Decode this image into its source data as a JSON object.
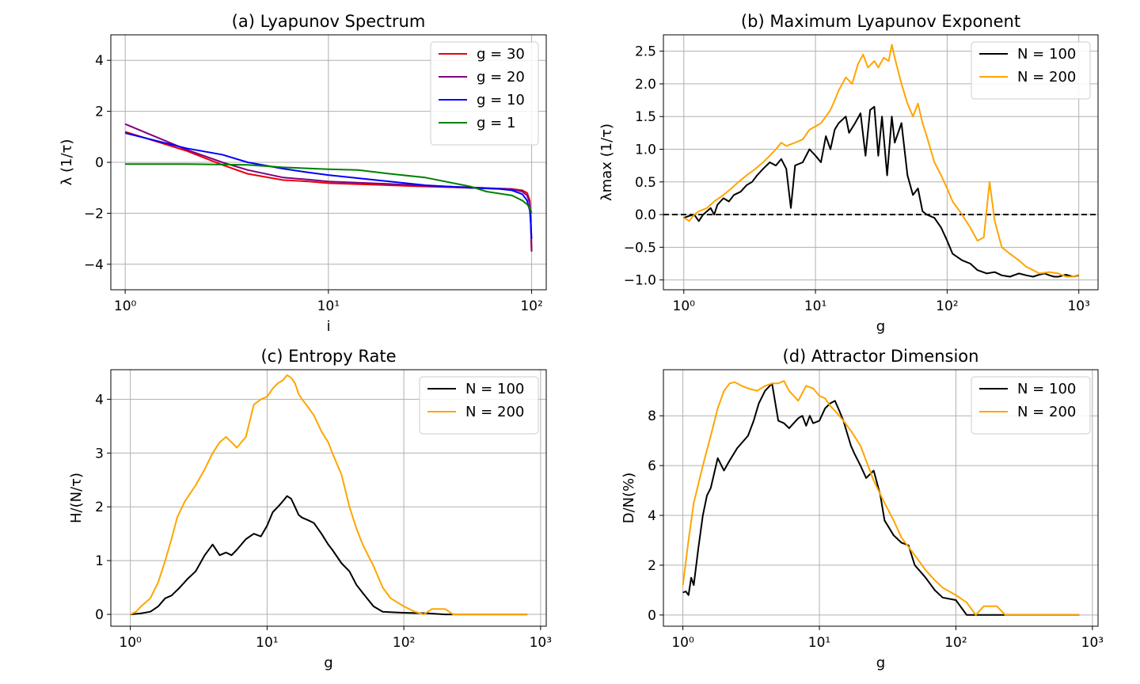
{
  "chart_data": [
    {
      "id": "a",
      "type": "line",
      "title": "(a) Lyapunov Spectrum",
      "xlabel": "i",
      "ylabel": "λ (1/τ)",
      "xscale": "log",
      "xlim": [
        0.85,
        118
      ],
      "ylim": [
        -5,
        5
      ],
      "xticks": [
        {
          "value": 1,
          "label": "10⁰"
        },
        {
          "value": 10,
          "label": "10¹"
        },
        {
          "value": 100,
          "label": "10²"
        }
      ],
      "yticks": [
        {
          "value": -4,
          "label": "−4"
        },
        {
          "value": -2,
          "label": "−2"
        },
        {
          "value": 0,
          "label": "0"
        },
        {
          "value": 2,
          "label": "2"
        },
        {
          "value": 4,
          "label": "4"
        }
      ],
      "grid": true,
      "legend": "top-right",
      "series": [
        {
          "name": "g = 30",
          "color": "#e8000b",
          "x": [
            1,
            2,
            3,
            4,
            6,
            8,
            10,
            20,
            30,
            50,
            80,
            90,
            95,
            98,
            99,
            100
          ],
          "y": [
            1.2,
            0.45,
            -0.1,
            -0.45,
            -0.7,
            -0.75,
            -0.82,
            -0.9,
            -0.95,
            -1.0,
            -1.05,
            -1.1,
            -1.2,
            -1.5,
            -2.2,
            -3.5
          ]
        },
        {
          "name": "g = 20",
          "color": "#800080",
          "x": [
            1,
            2,
            3,
            4,
            6,
            8,
            10,
            20,
            30,
            50,
            80,
            90,
            95,
            98,
            99,
            100
          ],
          "y": [
            1.5,
            0.5,
            0.0,
            -0.3,
            -0.6,
            -0.68,
            -0.75,
            -0.85,
            -0.92,
            -0.98,
            -1.05,
            -1.15,
            -1.3,
            -1.6,
            -2.3,
            -3.5
          ]
        },
        {
          "name": "g = 10",
          "color": "#0000ff",
          "x": [
            1,
            2,
            3,
            4,
            6,
            8,
            10,
            20,
            30,
            50,
            70,
            80,
            90,
            95,
            98,
            99,
            100
          ],
          "y": [
            1.15,
            0.55,
            0.3,
            0.0,
            -0.25,
            -0.4,
            -0.5,
            -0.75,
            -0.9,
            -1.0,
            -1.05,
            -1.1,
            -1.25,
            -1.5,
            -1.9,
            -2.4,
            -3.0
          ]
        },
        {
          "name": "g = 1",
          "color": "#008000",
          "x": [
            1,
            2,
            4,
            6,
            10,
            14,
            20,
            30,
            50,
            60,
            80,
            90,
            95,
            98,
            100
          ],
          "y": [
            -0.07,
            -0.07,
            -0.1,
            -0.2,
            -0.27,
            -0.3,
            -0.45,
            -0.6,
            -0.95,
            -1.15,
            -1.3,
            -1.5,
            -1.65,
            -1.8,
            -2.0
          ]
        }
      ]
    },
    {
      "id": "b",
      "type": "line",
      "title": "(b) Maximum Lyapunov Exponent",
      "xlabel": "g",
      "ylabel": "λmax (1/τ)",
      "xscale": "log",
      "xlim": [
        0.7,
        1400
      ],
      "ylim": [
        -1.15,
        2.75
      ],
      "xticks": [
        {
          "value": 1,
          "label": "10⁰"
        },
        {
          "value": 10,
          "label": "10¹"
        },
        {
          "value": 100,
          "label": "10²"
        },
        {
          "value": 1000,
          "label": "10³"
        }
      ],
      "yticks": [
        {
          "value": -1.0,
          "label": "−1.0"
        },
        {
          "value": -0.5,
          "label": "−0.5"
        },
        {
          "value": 0.0,
          "label": "0.0"
        },
        {
          "value": 0.5,
          "label": "0.5"
        },
        {
          "value": 1.0,
          "label": "1.0"
        },
        {
          "value": 1.5,
          "label": "1.5"
        },
        {
          "value": 2.0,
          "label": "2.0"
        },
        {
          "value": 2.5,
          "label": "2.5"
        }
      ],
      "grid": true,
      "legend": "top-right",
      "reference_line": {
        "y": 0,
        "style": "dashed",
        "color": "#000000"
      },
      "series": [
        {
          "name": "N = 100",
          "color": "#000000",
          "x": [
            1,
            1.1,
            1.2,
            1.3,
            1.4,
            1.5,
            1.6,
            1.7,
            1.8,
            2,
            2.2,
            2.4,
            2.7,
            3,
            3.3,
            3.6,
            4,
            4.5,
            5,
            5.5,
            6,
            6.5,
            7,
            8,
            9,
            10,
            11,
            12,
            13,
            14,
            15,
            17,
            18,
            20,
            22,
            24,
            26,
            28,
            30,
            32,
            35,
            38,
            40,
            45,
            50,
            55,
            60,
            65,
            70,
            80,
            90,
            100,
            110,
            130,
            150,
            170,
            200,
            230,
            260,
            300,
            350,
            400,
            450,
            500,
            550,
            600,
            650,
            700,
            800,
            900,
            1000
          ],
          "y": [
            -0.05,
            -0.02,
            0.0,
            -0.1,
            0.0,
            0.05,
            0.1,
            0.0,
            0.15,
            0.25,
            0.2,
            0.3,
            0.35,
            0.45,
            0.5,
            0.6,
            0.7,
            0.8,
            0.75,
            0.85,
            0.7,
            0.1,
            0.75,
            0.8,
            1.0,
            0.9,
            0.8,
            1.2,
            1.0,
            1.3,
            1.4,
            1.5,
            1.25,
            1.4,
            1.55,
            0.9,
            1.6,
            1.65,
            0.9,
            1.5,
            0.6,
            1.5,
            1.1,
            1.4,
            0.6,
            0.3,
            0.4,
            0.05,
            0.0,
            -0.05,
            -0.2,
            -0.4,
            -0.6,
            -0.7,
            -0.75,
            -0.85,
            -0.9,
            -0.88,
            -0.93,
            -0.95,
            -0.9,
            -0.93,
            -0.95,
            -0.92,
            -0.9,
            -0.93,
            -0.95,
            -0.95,
            -0.92,
            -0.95,
            -0.93
          ]
        },
        {
          "name": "N = 200",
          "color": "#ffa500",
          "x": [
            1,
            1.1,
            1.2,
            1.3,
            1.5,
            1.7,
            2,
            2.3,
            2.6,
            3,
            3.5,
            4,
            4.5,
            5,
            5.5,
            6,
            7,
            8,
            9,
            10,
            11,
            12,
            13,
            14,
            15,
            17,
            19,
            21,
            23,
            25,
            28,
            30,
            33,
            36,
            38,
            40,
            45,
            50,
            55,
            60,
            65,
            70,
            80,
            90,
            100,
            110,
            130,
            150,
            170,
            190,
            210,
            230,
            260,
            300,
            350,
            400,
            450,
            500,
            600,
            700,
            800,
            900,
            1000
          ],
          "y": [
            -0.05,
            -0.1,
            0.0,
            0.05,
            0.1,
            0.2,
            0.3,
            0.4,
            0.5,
            0.6,
            0.7,
            0.8,
            0.9,
            1.0,
            1.1,
            1.05,
            1.1,
            1.15,
            1.3,
            1.35,
            1.4,
            1.5,
            1.6,
            1.75,
            1.9,
            2.1,
            2.0,
            2.3,
            2.45,
            2.25,
            2.35,
            2.25,
            2.4,
            2.35,
            2.6,
            2.4,
            2.0,
            1.7,
            1.5,
            1.7,
            1.4,
            1.2,
            0.8,
            0.6,
            0.4,
            0.2,
            0.0,
            -0.2,
            -0.4,
            -0.35,
            0.5,
            -0.1,
            -0.5,
            -0.6,
            -0.7,
            -0.8,
            -0.85,
            -0.9,
            -0.88,
            -0.9,
            -0.95,
            -0.95,
            -0.92
          ]
        }
      ]
    },
    {
      "id": "c",
      "type": "line",
      "title": "(c) Entropy Rate",
      "xlabel": "g",
      "ylabel": "H/(N/τ)",
      "xscale": "log",
      "xlim": [
        0.72,
        1100
      ],
      "ylim": [
        -0.22,
        4.55
      ],
      "xticks": [
        {
          "value": 1,
          "label": "10⁰"
        },
        {
          "value": 10,
          "label": "10¹"
        },
        {
          "value": 100,
          "label": "10²"
        },
        {
          "value": 1000,
          "label": "10³"
        }
      ],
      "yticks": [
        {
          "value": 0,
          "label": "0"
        },
        {
          "value": 1,
          "label": "1"
        },
        {
          "value": 2,
          "label": "2"
        },
        {
          "value": 3,
          "label": "3"
        },
        {
          "value": 4,
          "label": "4"
        }
      ],
      "grid": true,
      "legend": "top-right",
      "series": [
        {
          "name": "N = 100",
          "color": "#000000",
          "x": [
            1,
            1.2,
            1.4,
            1.6,
            1.8,
            2,
            2.3,
            2.6,
            3,
            3.5,
            4,
            4.5,
            5,
            5.5,
            6,
            7,
            8,
            9,
            10,
            11,
            12,
            13,
            14,
            15,
            16,
            17,
            18,
            20,
            22,
            25,
            28,
            30,
            35,
            40,
            45,
            50,
            60,
            70,
            80,
            100,
            150,
            200,
            300,
            500,
            800
          ],
          "y": [
            0.0,
            0.02,
            0.05,
            0.15,
            0.3,
            0.35,
            0.5,
            0.65,
            0.8,
            1.1,
            1.3,
            1.1,
            1.15,
            1.1,
            1.2,
            1.4,
            1.5,
            1.45,
            1.65,
            1.9,
            2.0,
            2.1,
            2.2,
            2.15,
            2.0,
            1.85,
            1.8,
            1.75,
            1.7,
            1.5,
            1.3,
            1.2,
            0.95,
            0.8,
            0.55,
            0.4,
            0.15,
            0.05,
            0.04,
            0.03,
            0.02,
            0.0,
            0.0,
            0.0,
            0.0
          ]
        },
        {
          "name": "N = 200",
          "color": "#ffa500",
          "x": [
            1,
            1.1,
            1.2,
            1.4,
            1.6,
            1.8,
            2,
            2.2,
            2.5,
            3,
            3.5,
            4,
            4.5,
            5,
            5.5,
            6,
            7,
            8,
            9,
            10,
            11,
            12,
            13,
            14,
            15,
            16,
            17,
            18,
            20,
            22,
            25,
            28,
            30,
            35,
            40,
            45,
            50,
            60,
            70,
            80,
            100,
            120,
            140,
            160,
            200,
            230,
            260,
            300,
            500,
            800
          ],
          "y": [
            0.0,
            0.05,
            0.15,
            0.3,
            0.6,
            1.0,
            1.4,
            1.8,
            2.1,
            2.4,
            2.7,
            3.0,
            3.2,
            3.3,
            3.2,
            3.1,
            3.3,
            3.9,
            4.0,
            4.05,
            4.2,
            4.3,
            4.35,
            4.45,
            4.4,
            4.3,
            4.1,
            4.0,
            3.85,
            3.7,
            3.4,
            3.2,
            3.0,
            2.6,
            2.0,
            1.6,
            1.3,
            0.9,
            0.5,
            0.3,
            0.15,
            0.05,
            0.0,
            0.1,
            0.1,
            0.0,
            0.0,
            0.0,
            0.0,
            0.0
          ]
        }
      ]
    },
    {
      "id": "d",
      "type": "line",
      "title": "(d) Attractor Dimension",
      "xlabel": "g",
      "ylabel": "D/N(%)",
      "xscale": "log",
      "xlim": [
        0.72,
        1100
      ],
      "ylim": [
        -0.45,
        9.85
      ],
      "xticks": [
        {
          "value": 1,
          "label": "10⁰"
        },
        {
          "value": 10,
          "label": "10¹"
        },
        {
          "value": 100,
          "label": "10²"
        },
        {
          "value": 1000,
          "label": "10³"
        }
      ],
      "yticks": [
        {
          "value": 0,
          "label": "0"
        },
        {
          "value": 2,
          "label": "2"
        },
        {
          "value": 4,
          "label": "4"
        },
        {
          "value": 6,
          "label": "6"
        },
        {
          "value": 8,
          "label": "8"
        }
      ],
      "grid": true,
      "legend": "top-right",
      "series": [
        {
          "name": "N = 100",
          "color": "#000000",
          "x": [
            1,
            1.05,
            1.1,
            1.15,
            1.2,
            1.3,
            1.4,
            1.5,
            1.6,
            1.8,
            2,
            2.2,
            2.5,
            3,
            3.3,
            3.6,
            4,
            4.5,
            5,
            5.5,
            6,
            7,
            7.5,
            8,
            8.5,
            9,
            10,
            11,
            12,
            13,
            14,
            15,
            17,
            18,
            20,
            22,
            25,
            28,
            30,
            35,
            40,
            45,
            50,
            60,
            70,
            80,
            100,
            120,
            150,
            200,
            300,
            500,
            800
          ],
          "y": [
            0.9,
            0.95,
            0.8,
            1.5,
            1.2,
            2.7,
            4.0,
            4.8,
            5.1,
            6.3,
            5.8,
            6.2,
            6.7,
            7.2,
            7.8,
            8.5,
            9.0,
            9.3,
            7.8,
            7.7,
            7.5,
            7.9,
            8.0,
            7.6,
            8.0,
            7.7,
            7.8,
            8.3,
            8.5,
            8.6,
            8.2,
            7.8,
            6.8,
            6.5,
            6.0,
            5.5,
            5.8,
            4.8,
            3.8,
            3.2,
            2.9,
            2.8,
            2.0,
            1.5,
            1.0,
            0.7,
            0.6,
            0.0,
            0.0,
            0.0,
            0.0,
            0.0,
            0.0
          ]
        },
        {
          "name": "N = 200",
          "color": "#ffa500",
          "x": [
            1,
            1.1,
            1.2,
            1.4,
            1.6,
            1.8,
            2,
            2.2,
            2.4,
            2.7,
            3,
            3.5,
            4,
            4.5,
            5,
            5.5,
            6,
            7,
            8,
            9,
            10,
            11,
            12,
            13,
            14,
            15,
            17,
            20,
            25,
            30,
            35,
            40,
            50,
            60,
            70,
            80,
            100,
            120,
            140,
            160,
            200,
            230,
            260,
            300,
            500,
            800
          ],
          "y": [
            1.2,
            3.0,
            4.5,
            6.0,
            7.2,
            8.3,
            9.0,
            9.3,
            9.35,
            9.2,
            9.1,
            9.0,
            9.2,
            9.3,
            9.3,
            9.4,
            9.0,
            8.6,
            9.2,
            9.1,
            8.8,
            8.7,
            8.4,
            8.2,
            8.0,
            7.8,
            7.4,
            6.8,
            5.4,
            4.5,
            3.8,
            3.1,
            2.4,
            1.8,
            1.4,
            1.1,
            0.8,
            0.5,
            0.0,
            0.35,
            0.35,
            0.0,
            0.0,
            0.0,
            0.0,
            0.0
          ]
        }
      ]
    }
  ]
}
